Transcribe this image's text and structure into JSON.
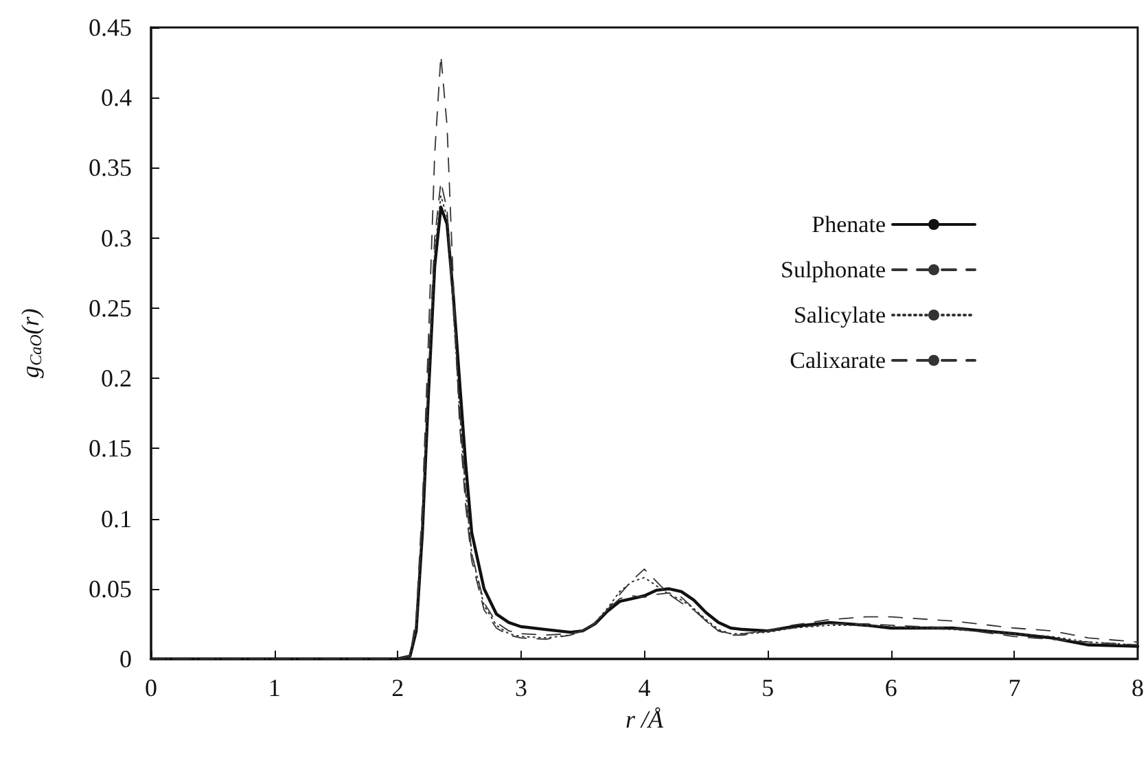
{
  "chart_data": {
    "type": "line",
    "xlabel": "r /Å",
    "ylabel": "g$_{CaO}$(r)",
    "xlim": [
      0,
      8
    ],
    "xticks": [
      0,
      1,
      2,
      3,
      4,
      5,
      6,
      7,
      8
    ],
    "ylim": [
      0,
      0.45
    ],
    "yticks": [
      0,
      0.05,
      0.1,
      0.15,
      0.2,
      0.25,
      0.3,
      0.35,
      0.4,
      0.45
    ],
    "grid": false,
    "legend": "top right",
    "marker": "none",
    "x": [
      0,
      1,
      2,
      2.1,
      2.15,
      2.2,
      2.25,
      2.3,
      2.35,
      2.4,
      2.45,
      2.5,
      2.55,
      2.6,
      2.7,
      2.8,
      2.9,
      3.0,
      3.2,
      3.4,
      3.5,
      3.6,
      3.7,
      3.8,
      3.9,
      4.0,
      4.1,
      4.2,
      4.3,
      4.4,
      4.5,
      4.6,
      4.7,
      4.8,
      5.0,
      5.2,
      5.5,
      5.8,
      6.0,
      6.5,
      7.0,
      7.3,
      7.6,
      8.0
    ],
    "series": [
      {
        "name": "Phenate",
        "color": "#111111",
        "line_style": "solid",
        "values": [
          0,
          0,
          0,
          0.002,
          0.02,
          0.09,
          0.19,
          0.28,
          0.322,
          0.31,
          0.26,
          0.2,
          0.14,
          0.09,
          0.05,
          0.032,
          0.026,
          0.023,
          0.021,
          0.019,
          0.02,
          0.025,
          0.034,
          0.041,
          0.043,
          0.045,
          0.049,
          0.05,
          0.048,
          0.042,
          0.033,
          0.026,
          0.022,
          0.021,
          0.02,
          0.023,
          0.026,
          0.024,
          0.022,
          0.022,
          0.018,
          0.015,
          0.01,
          0.009
        ]
      },
      {
        "name": "Sulphonate",
        "color": "#333333",
        "line_style": "dashed",
        "values": [
          0,
          0,
          0,
          0.002,
          0.025,
          0.1,
          0.21,
          0.3,
          0.34,
          0.32,
          0.25,
          0.18,
          0.12,
          0.075,
          0.04,
          0.026,
          0.02,
          0.018,
          0.017,
          0.018,
          0.02,
          0.026,
          0.035,
          0.043,
          0.045,
          0.044,
          0.046,
          0.047,
          0.044,
          0.036,
          0.027,
          0.02,
          0.018,
          0.018,
          0.02,
          0.024,
          0.028,
          0.03,
          0.03,
          0.027,
          0.022,
          0.02,
          0.015,
          0.012
        ]
      },
      {
        "name": "Salicylate",
        "color": "#333333",
        "line_style": "dotted",
        "values": [
          0,
          0,
          0,
          0.002,
          0.022,
          0.095,
          0.2,
          0.29,
          0.33,
          0.315,
          0.25,
          0.18,
          0.12,
          0.075,
          0.038,
          0.024,
          0.018,
          0.016,
          0.015,
          0.017,
          0.02,
          0.026,
          0.036,
          0.048,
          0.055,
          0.058,
          0.052,
          0.046,
          0.042,
          0.036,
          0.028,
          0.021,
          0.018,
          0.018,
          0.019,
          0.022,
          0.024,
          0.024,
          0.023,
          0.021,
          0.018,
          0.016,
          0.012,
          0.01
        ]
      },
      {
        "name": "Calixarate",
        "color": "#333333",
        "line_style": "dashed",
        "values": [
          0,
          0,
          0,
          0.002,
          0.03,
          0.11,
          0.23,
          0.36,
          0.43,
          0.38,
          0.27,
          0.17,
          0.11,
          0.07,
          0.035,
          0.022,
          0.017,
          0.015,
          0.014,
          0.017,
          0.02,
          0.025,
          0.035,
          0.046,
          0.056,
          0.064,
          0.055,
          0.046,
          0.04,
          0.035,
          0.027,
          0.02,
          0.017,
          0.017,
          0.02,
          0.022,
          0.025,
          0.025,
          0.024,
          0.022,
          0.016,
          0.014,
          0.012,
          0.01
        ]
      }
    ]
  }
}
